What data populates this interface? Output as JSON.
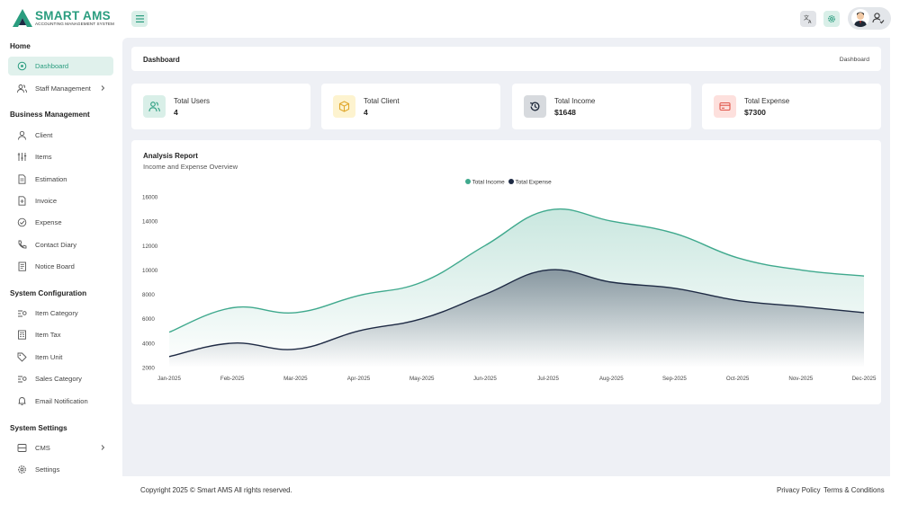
{
  "app": {
    "name": "SMART AMS",
    "tagline": "ACCOUNTING MANAGEMENT SYSTEM",
    "brand_color": "#2a9d7f"
  },
  "topbar": {
    "menu_icon": "hamburger-icon",
    "translate_icon": "translate-icon",
    "settings_icon": "gear-icon",
    "profile_icon": "user-icon"
  },
  "sidebar": {
    "sections": [
      {
        "title": "Home"
      },
      {
        "title": "Business Management"
      },
      {
        "title": "System Configuration"
      },
      {
        "title": "System Settings"
      }
    ],
    "items": [
      {
        "label": "Dashboard",
        "icon": "dashboard-icon",
        "active": true
      },
      {
        "label": "Staff Management",
        "icon": "users-icon",
        "has_submenu": true
      },
      {
        "label": "Client",
        "icon": "user-icon"
      },
      {
        "label": "Items",
        "icon": "sliders-icon"
      },
      {
        "label": "Estimation",
        "icon": "document-icon"
      },
      {
        "label": "Invoice",
        "icon": "invoice-icon"
      },
      {
        "label": "Expense",
        "icon": "check-circle-icon"
      },
      {
        "label": "Contact Diary",
        "icon": "phone-icon"
      },
      {
        "label": "Notice Board",
        "icon": "notice-icon"
      },
      {
        "label": "Item Category",
        "icon": "category-icon"
      },
      {
        "label": "Item Tax",
        "icon": "tax-icon"
      },
      {
        "label": "Item Unit",
        "icon": "tag-icon"
      },
      {
        "label": "Sales Category",
        "icon": "category-icon"
      },
      {
        "label": "Email Notification",
        "icon": "bell-icon"
      },
      {
        "label": "CMS",
        "icon": "cms-icon",
        "has_submenu": true
      },
      {
        "label": "Settings",
        "icon": "gear-icon"
      }
    ]
  },
  "header": {
    "title": "Dashboard",
    "breadcrumb": "Dashboard"
  },
  "stats": [
    {
      "label": "Total Users",
      "value": "4",
      "icon": "users-icon",
      "bg": "#d9efe8",
      "fg": "#2a9d7f"
    },
    {
      "label": "Total Client",
      "value": "4",
      "icon": "box-icon",
      "bg": "#fdf3cf",
      "fg": "#e0a82e"
    },
    {
      "label": "Total Income",
      "value": "$1648",
      "icon": "history-icon",
      "bg": "#d7dade",
      "fg": "#1e293b"
    },
    {
      "label": "Total Expense",
      "value": "$7300",
      "icon": "card-icon",
      "bg": "#fde0dd",
      "fg": "#e0564b"
    }
  ],
  "report": {
    "title": "Analysis Report",
    "subtitle": "Income and Expense Overview"
  },
  "chart_data": {
    "type": "area",
    "categories": [
      "Jan-2025",
      "Feb-2025",
      "Mar-2025",
      "Apr-2025",
      "May-2025",
      "Jun-2025",
      "Jul-2025",
      "Aug-2025",
      "Sep-2025",
      "Oct-2025",
      "Nov-2025",
      "Dec-2025"
    ],
    "series": [
      {
        "name": "Total Income",
        "color": "#3fa98d",
        "values": [
          4900,
          6900,
          6500,
          7900,
          9000,
          12000,
          14900,
          14000,
          13000,
          11000,
          10000,
          9500
        ]
      },
      {
        "name": "Total Expense",
        "color": "#1e2a44",
        "values": [
          2900,
          4000,
          3500,
          5000,
          6000,
          8000,
          10000,
          9000,
          8500,
          7500,
          7000,
          6500
        ]
      }
    ],
    "y_ticks": [
      2000,
      4000,
      6000,
      8000,
      10000,
      12000,
      14000,
      16000
    ],
    "ylim": [
      2000,
      16000
    ],
    "legend_position": "top-center",
    "grid": false
  },
  "footer": {
    "copyright": "Copyright 2025 © Smart AMS All rights reserved.",
    "privacy": "Privacy Policy",
    "terms": "Terms & Conditions"
  }
}
